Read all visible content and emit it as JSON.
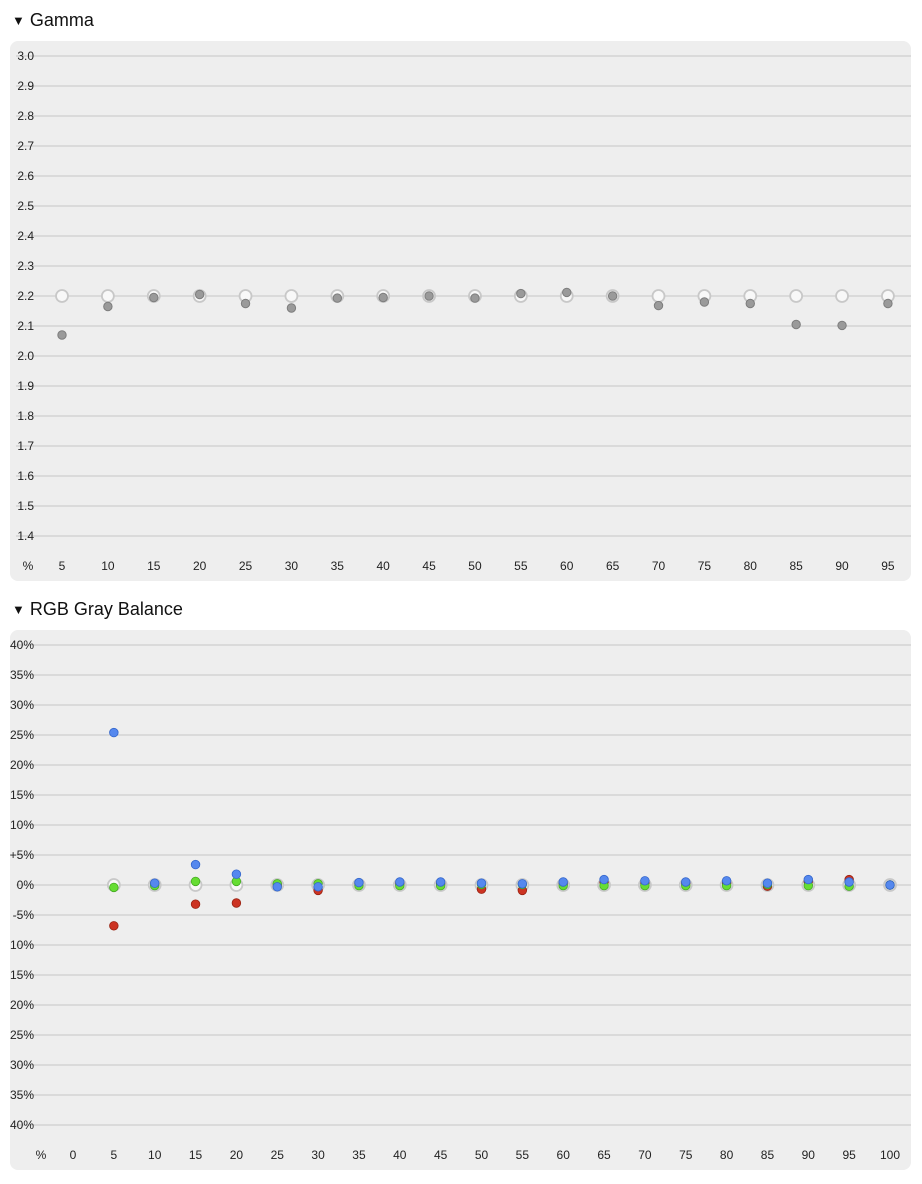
{
  "sections": {
    "gamma": {
      "title": "Gamma",
      "toggle_icon": "triangle-down-icon"
    },
    "gray": {
      "title": "RGB Gray Balance",
      "toggle_icon": "triangle-down-icon"
    }
  },
  "colors": {
    "panel_bg": "#eeeeee",
    "grid": "#d4d4d4",
    "target_ring": "#c8c8c8",
    "gamma_point": "#9a9a9a",
    "red": "#cc3322",
    "green": "#66dd33",
    "blue": "#5588ee"
  },
  "chart_data": [
    {
      "type": "scatter",
      "title": "Gamma",
      "x_axis_label": "%",
      "x": [
        5,
        10,
        15,
        20,
        25,
        30,
        35,
        40,
        45,
        50,
        55,
        60,
        65,
        70,
        75,
        80,
        85,
        90,
        95
      ],
      "ylim": [
        1.4,
        3.0
      ],
      "y_ticks": [
        "3.0",
        "2.9",
        "2.8",
        "2.7",
        "2.6",
        "2.5",
        "2.4",
        "2.3",
        "2.2",
        "2.1",
        "2.0",
        "1.9",
        "1.8",
        "1.7",
        "1.6",
        "1.5",
        "1.4"
      ],
      "grid": true,
      "series": [
        {
          "role": "target",
          "values": [
            2.2,
            2.2,
            2.2,
            2.2,
            2.2,
            2.2,
            2.2,
            2.2,
            2.2,
            2.2,
            2.2,
            2.2,
            2.2,
            2.2,
            2.2,
            2.2,
            2.2,
            2.2,
            2.2
          ]
        },
        {
          "role": "measured",
          "values": [
            2.07,
            2.165,
            2.195,
            2.205,
            2.175,
            2.16,
            2.193,
            2.195,
            2.2,
            2.193,
            2.208,
            2.212,
            2.2,
            2.168,
            2.18,
            2.175,
            2.105,
            2.102,
            2.175
          ]
        }
      ]
    },
    {
      "type": "scatter",
      "title": "RGB Gray Balance",
      "x_axis_label": "%",
      "x": [
        0,
        5,
        10,
        15,
        20,
        25,
        30,
        35,
        40,
        45,
        50,
        55,
        60,
        65,
        70,
        75,
        80,
        85,
        90,
        95,
        100
      ],
      "ylim": [
        -40,
        40
      ],
      "y_ticks": [
        "+40%",
        "+35%",
        "+30%",
        "+25%",
        "+20%",
        "+15%",
        "+10%",
        "+5%",
        "0%",
        "-5%",
        "-10%",
        "-15%",
        "-20%",
        "-25%",
        "-30%",
        "-35%",
        "-40%"
      ],
      "grid": true,
      "target_x": [
        5,
        10,
        15,
        20,
        25,
        30,
        35,
        40,
        45,
        50,
        55,
        60,
        65,
        70,
        75,
        80,
        85,
        90,
        95,
        100
      ],
      "series": [
        {
          "color": "red",
          "x": [
            5,
            10,
            15,
            20,
            25,
            30,
            35,
            40,
            45,
            50,
            55,
            60,
            65,
            70,
            75,
            80,
            85,
            90,
            95,
            100
          ],
          "values": [
            -6.8,
            0.2,
            -3.2,
            -3.0,
            0.0,
            -0.9,
            0.2,
            0.2,
            0.2,
            -0.7,
            -0.9,
            0.2,
            0.5,
            0.3,
            0.3,
            0.3,
            -0.2,
            0.6,
            0.9,
            0.0
          ]
        },
        {
          "color": "green",
          "x": [
            5,
            10,
            15,
            20,
            25,
            30,
            35,
            40,
            45,
            50,
            55,
            60,
            65,
            70,
            75,
            80,
            85,
            90,
            95,
            100
          ],
          "values": [
            -0.4,
            -0.1,
            0.6,
            0.6,
            0.2,
            0.2,
            -0.1,
            -0.1,
            -0.1,
            0.1,
            0.1,
            -0.1,
            -0.1,
            -0.1,
            -0.1,
            -0.1,
            0.1,
            -0.1,
            -0.2,
            0.0
          ]
        },
        {
          "color": "blue",
          "x": [
            5,
            10,
            15,
            20,
            25,
            30,
            35,
            40,
            45,
            50,
            55,
            60,
            65,
            70,
            75,
            80,
            85,
            90,
            95,
            100
          ],
          "values": [
            25.4,
            0.3,
            3.4,
            1.8,
            -0.3,
            -0.3,
            0.4,
            0.5,
            0.5,
            0.3,
            0.2,
            0.5,
            0.9,
            0.7,
            0.5,
            0.7,
            0.3,
            0.9,
            0.5,
            0.0
          ]
        }
      ]
    }
  ]
}
